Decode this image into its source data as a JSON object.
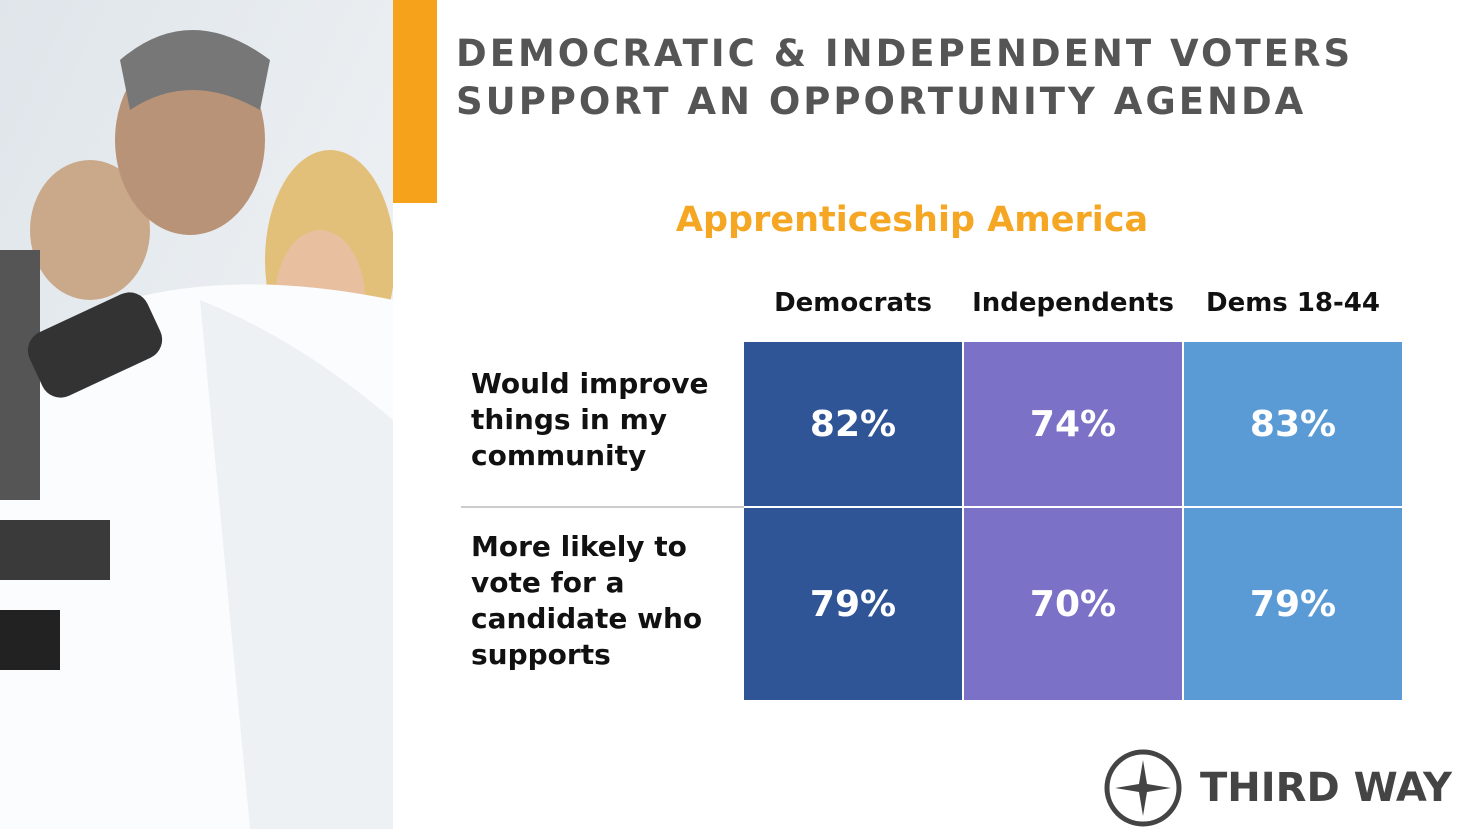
{
  "header": {
    "title_lines": [
      "DEMOCRATIC & INDEPENDENT VOTERS",
      "SUPPORT AN OPPORTUNITY AGENDA"
    ],
    "subtitle": "Apprenticeship America"
  },
  "table": {
    "columns": [
      "Democrats",
      "Independents",
      "Dems 18-44"
    ],
    "rows": [
      {
        "label": "Would improve things in my community",
        "cells": [
          "82%",
          "74%",
          "83%"
        ]
      },
      {
        "label": "More likely to vote for a candidate who supports",
        "cells": [
          "79%",
          "70%",
          "79%"
        ]
      }
    ]
  },
  "logo": {
    "text": "THIRD WAY"
  }
}
